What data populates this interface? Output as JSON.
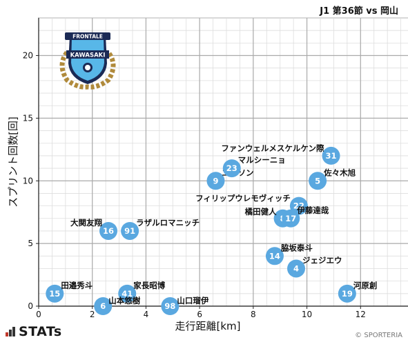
{
  "header": {
    "title": "J1 第36節 vs 岡山"
  },
  "footer": {
    "brand": "STATs",
    "credit": "© SPORTERIA"
  },
  "emblem": {
    "top_text": "FRONTALE",
    "club_text": "KAWASAKI",
    "colors": {
      "sky": "#58b7e8",
      "navy": "#1b2a55",
      "gold": "#b08a3b"
    }
  },
  "colors": {
    "point": "#5aa8e0",
    "grid_major": "#aaaaaa",
    "grid_minor": "#dddddd"
  },
  "chart_data": {
    "type": "scatter",
    "xlabel": "走行距離[km]",
    "ylabel": "スプリント回数[回]",
    "xlim": [
      0,
      14
    ],
    "ylim": [
      0,
      23
    ],
    "xticks": [
      0,
      2,
      4,
      6,
      8,
      10,
      12,
      14
    ],
    "yticks": [
      0,
      5,
      10,
      15,
      20
    ],
    "grid": true,
    "points": [
      {
        "number": "15",
        "name": "田邉秀斗",
        "x": 0.6,
        "y": 1
      },
      {
        "number": "41",
        "name": "家長昭博",
        "x": 3.3,
        "y": 1
      },
      {
        "number": "6",
        "name": "山本悠樹",
        "x": 2.4,
        "y": 0
      },
      {
        "number": "98",
        "name": "山口瑠伊",
        "x": 4.9,
        "y": 0
      },
      {
        "number": "16",
        "name": "大関友翔",
        "x": 2.6,
        "y": 6
      },
      {
        "number": "91",
        "name": "ラザルロマニッチ",
        "x": 3.4,
        "y": 6
      },
      {
        "number": "9",
        "name": "エリソン",
        "x": 6.6,
        "y": 10
      },
      {
        "number": "23",
        "name": "マルシーニョ",
        "x": 7.2,
        "y": 11
      },
      {
        "number": "31",
        "name": "ファンウェルメスケルケン際",
        "x": 10.9,
        "y": 12
      },
      {
        "number": "5",
        "name": "佐々木旭",
        "x": 10.4,
        "y": 10
      },
      {
        "number": "22",
        "name": "フィリップウレモヴィッチ",
        "x": 9.7,
        "y": 8
      },
      {
        "number": "8",
        "name": "橘田健人",
        "x": 9.1,
        "y": 7
      },
      {
        "number": "17",
        "name": "伊藤達哉",
        "x": 9.4,
        "y": 7
      },
      {
        "number": "14",
        "name": "脇坂泰斗",
        "x": 8.8,
        "y": 4
      },
      {
        "number": "4",
        "name": "ジェジエウ",
        "x": 9.6,
        "y": 3
      },
      {
        "number": "19",
        "name": "河原創",
        "x": 11.5,
        "y": 1
      }
    ]
  }
}
